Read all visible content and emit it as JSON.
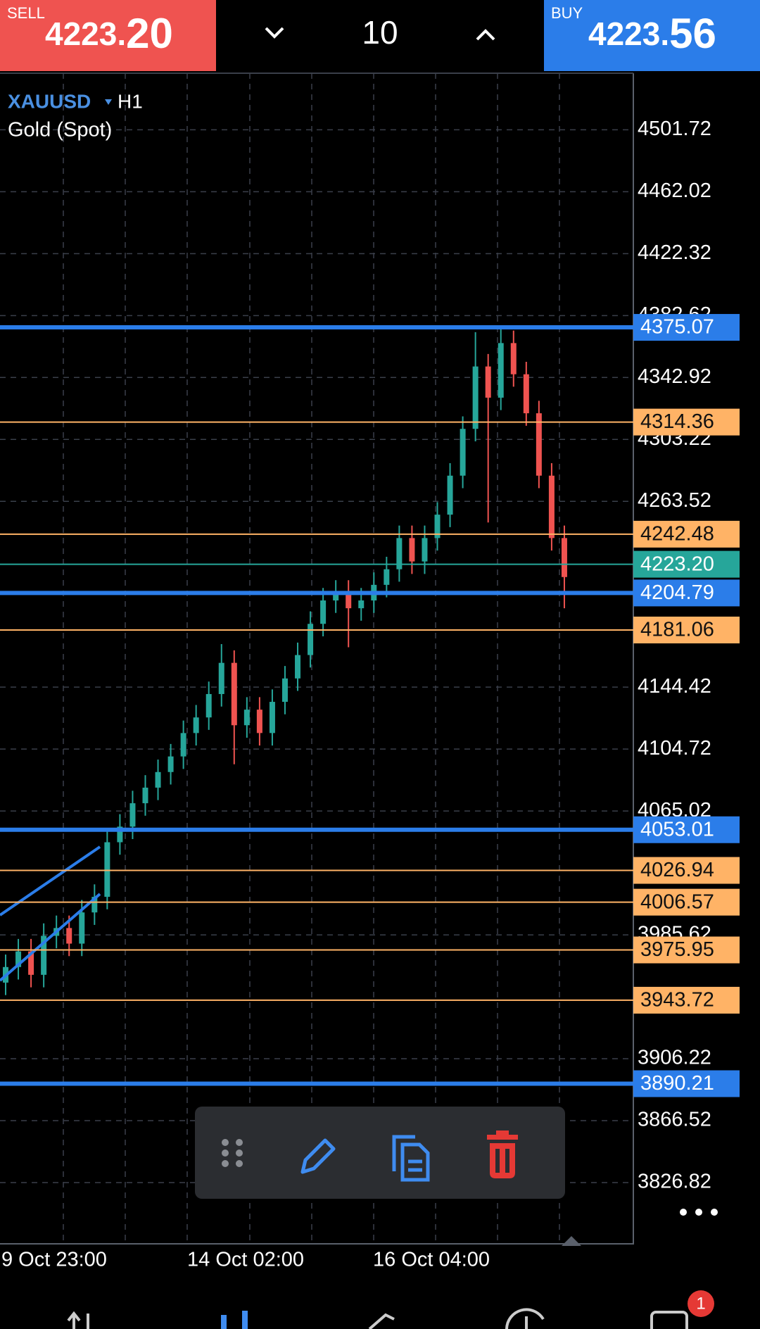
{
  "header": {
    "sell": {
      "label": "SELL",
      "price_main": "4223.",
      "price_frac": "20"
    },
    "volume": "10",
    "buy": {
      "label": "BUY",
      "price_main": "4223.",
      "price_frac": "56"
    }
  },
  "chart": {
    "symbol": "XAUUSD",
    "timeframe": "H1",
    "description": "Gold (Spot)",
    "ylim": [
      3788,
      4538
    ],
    "yticks": [
      4501.72,
      4462.02,
      4422.32,
      4382.62,
      4342.92,
      4303.22,
      4263.52,
      4144.42,
      4104.72,
      4065.02,
      3985.62,
      3906.22,
      3866.52,
      3826.82
    ],
    "xlabels": [
      "9 Oct 23:00",
      "14 Oct 02:00",
      "16 Oct 04:00"
    ],
    "up_color": "#26a69a",
    "down_color": "#ef5350",
    "candles": {
      "open": [
        3955,
        3965,
        3975,
        3960,
        3985,
        3990,
        3980,
        4000,
        4010,
        4045,
        4055,
        4070,
        4080,
        4090,
        4100,
        4115,
        4125,
        4140,
        4160,
        4120,
        4130,
        4115,
        4135,
        4150,
        4165,
        4185,
        4200,
        4205,
        4195,
        4200,
        4210,
        4220,
        4240,
        4225,
        4240,
        4255,
        4280,
        4310,
        4350,
        4330,
        4365,
        4345,
        4320,
        4280,
        4240
      ],
      "high": [
        3973,
        3983,
        3983,
        3993,
        3998,
        3998,
        4008,
        4018,
        4053,
        4063,
        4078,
        4088,
        4098,
        4108,
        4123,
        4133,
        4148,
        4172,
        4168,
        4138,
        4138,
        4143,
        4158,
        4173,
        4193,
        4208,
        4213,
        4213,
        4208,
        4218,
        4228,
        4248,
        4248,
        4248,
        4263,
        4288,
        4318,
        4372,
        4358,
        4375,
        4373,
        4353,
        4328,
        4288,
        4248
      ],
      "low": [
        3947,
        3957,
        3952,
        3952,
        3977,
        3972,
        3972,
        3992,
        4002,
        4037,
        4047,
        4062,
        4072,
        4082,
        4092,
        4107,
        4117,
        4132,
        4095,
        4112,
        4107,
        4107,
        4127,
        4142,
        4157,
        4177,
        4192,
        4170,
        4187,
        4192,
        4202,
        4212,
        4217,
        4217,
        4232,
        4247,
        4272,
        4302,
        4250,
        4322,
        4337,
        4312,
        4272,
        4232,
        4195
      ],
      "close": [
        3965,
        3975,
        3960,
        3985,
        3990,
        3980,
        4000,
        4010,
        4045,
        4055,
        4070,
        4080,
        4090,
        4100,
        4115,
        4125,
        4140,
        4160,
        4120,
        4130,
        4115,
        4135,
        4150,
        4165,
        4185,
        4200,
        4205,
        4195,
        4200,
        4210,
        4220,
        4240,
        4225,
        4240,
        4255,
        4280,
        4310,
        4350,
        4330,
        4365,
        4345,
        4320,
        4280,
        4240,
        4215
      ]
    },
    "levels": [
      {
        "value": 4375.07,
        "color": "#2b7de9"
      },
      {
        "value": 4314.36,
        "color": "#ffb366"
      },
      {
        "value": 4242.48,
        "color": "#ffb366"
      },
      {
        "value": 4223.2,
        "label": "4223.20",
        "color": "#26a69a"
      },
      {
        "value": 4204.79,
        "color": "#2b7de9"
      },
      {
        "value": 4181.06,
        "color": "#ffb366"
      },
      {
        "value": 4053.01,
        "color": "#2b7de9"
      },
      {
        "value": 4026.94,
        "color": "#ffb366"
      },
      {
        "value": 4006.57,
        "color": "#ffb366"
      },
      {
        "value": 3975.95,
        "color": "#ffb366"
      },
      {
        "value": 3943.72,
        "color": "#ffb366"
      },
      {
        "value": 3890.21,
        "color": "#2b7de9"
      }
    ]
  },
  "nav": {
    "badge": "1"
  }
}
